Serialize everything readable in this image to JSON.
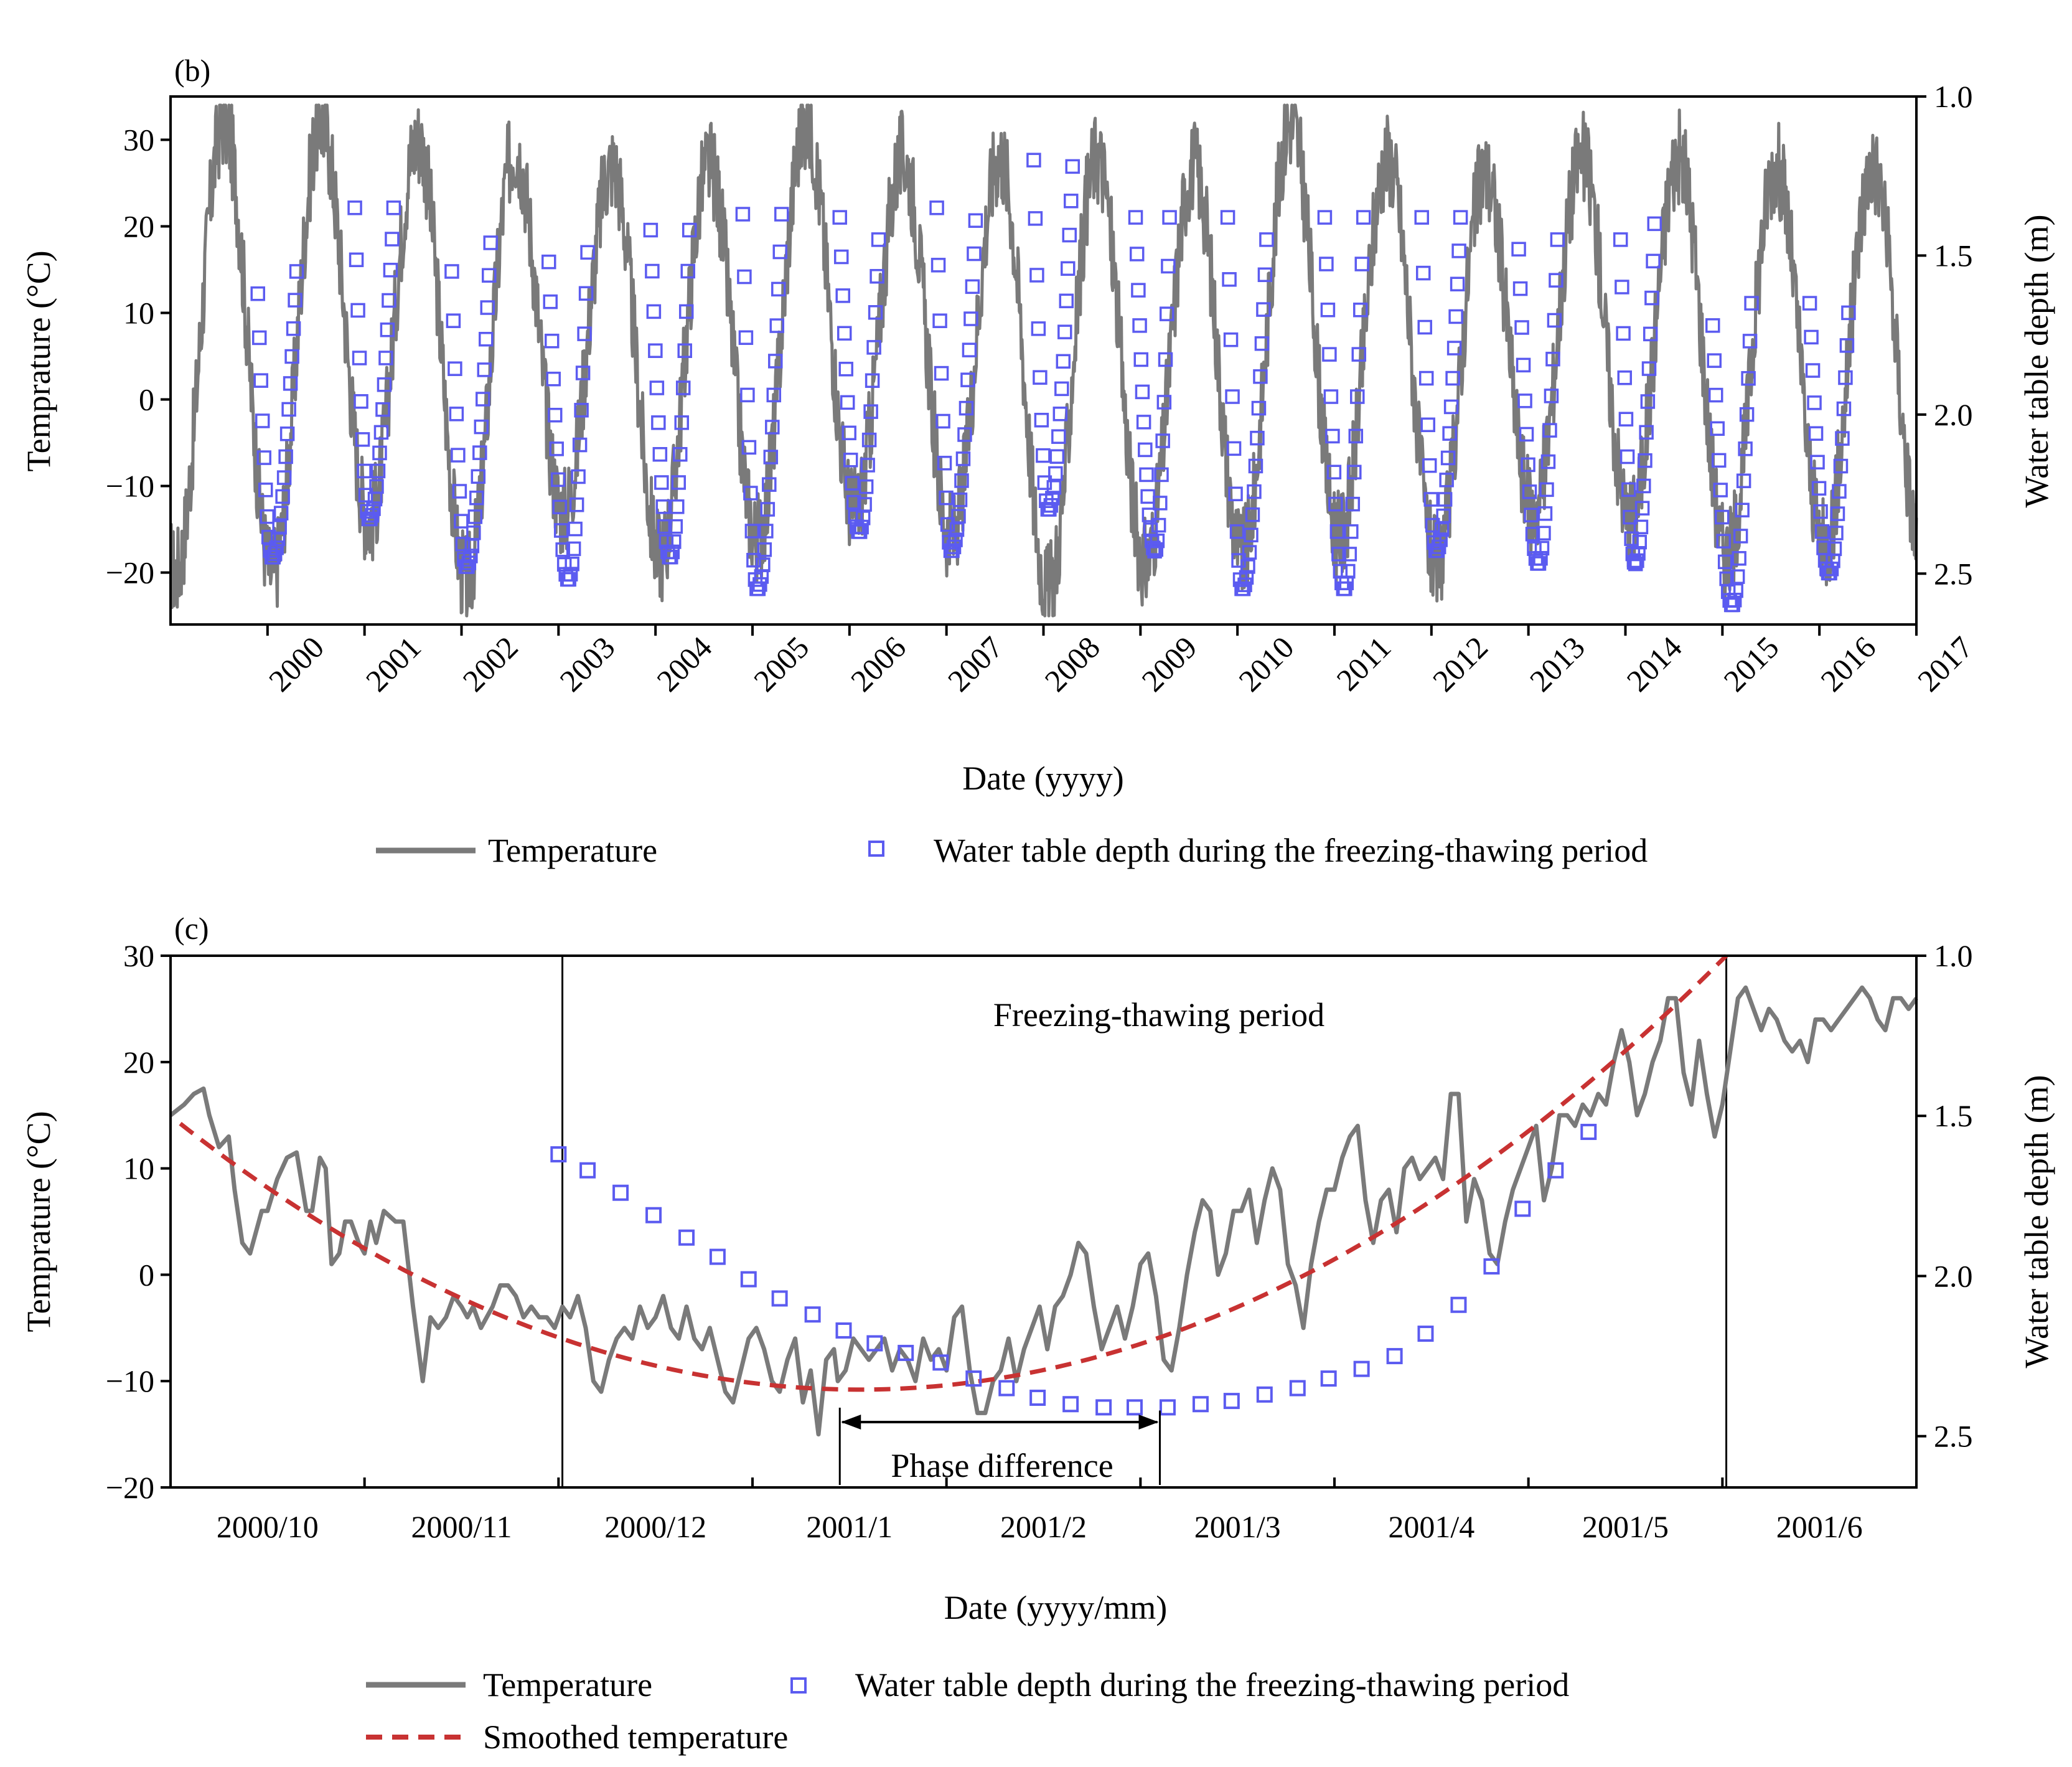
{
  "chart_data": [
    {
      "type": "line",
      "panel_label": "(b)",
      "xlabel": "Date (yyyy)",
      "ylabel_left": "Temprature (°C)",
      "ylabel_right": "Water table depth (m)",
      "x_tick_labels": [
        "2000",
        "2001",
        "2002",
        "2003",
        "2004",
        "2005",
        "2006",
        "2007",
        "2008",
        "2009",
        "2010",
        "2011",
        "2012",
        "2013",
        "2014",
        "2015",
        "2016",
        "2017"
      ],
      "xlim": [
        1999.0,
        2017.0
      ],
      "ylim_left": [
        -26,
        35
      ],
      "y_ticks_left": [
        30,
        20,
        10,
        0,
        -10,
        -20
      ],
      "y_tick_labels_left": [
        "30",
        "20",
        "10",
        "0",
        "−10",
        "−20"
      ],
      "ylim_right_reversed": [
        1.0,
        2.66
      ],
      "y_ticks_right": [
        1.0,
        1.5,
        2.0,
        2.5
      ],
      "y_tick_labels_right": [
        "1.0",
        "1.5",
        "2.0",
        "2.5"
      ],
      "grid": false,
      "legend": {
        "placement": "bottom",
        "entries": [
          "Temperature",
          "Water table depth during the freezing-thawing period"
        ]
      },
      "temperature_seasonal": {
        "description_units": "°C, annual cycle: year, approximate summer peak, approximate winter low",
        "years": [
          2000,
          2001,
          2002,
          2003,
          2004,
          2005,
          2006,
          2007,
          2008,
          2009,
          2010,
          2011,
          2012,
          2013,
          2014,
          2015,
          2016,
          2017
        ],
        "summer_peak": [
          32,
          30,
          29,
          27,
          27,
          32,
          28,
          28,
          28,
          27,
          32,
          28,
          26,
          28,
          28,
          27,
          27,
          30
        ],
        "winter_low": [
          -20,
          -14,
          -21,
          -13,
          -18,
          -16,
          -13,
          -16,
          -22,
          -19,
          -18,
          -16,
          -19,
          -13,
          -14,
          -18,
          -17,
          -17
        ]
      },
      "series": [
        {
          "name": "Water table depth during the freezing-thawing period",
          "units": "m",
          "periods": [
            {
              "start": 1999.9,
              "start_depth": 1.62,
              "min_date": 2000.05,
              "max_depth": 2.45,
              "end": 2000.3,
              "end_depth": 1.55
            },
            {
              "start": 2000.9,
              "start_depth": 1.35,
              "min_date": 2001.05,
              "max_depth": 2.33,
              "end": 2001.3,
              "end_depth": 1.35
            },
            {
              "start": 2001.9,
              "start_depth": 1.55,
              "min_date": 2002.05,
              "max_depth": 2.48,
              "end": 2002.3,
              "end_depth": 1.46
            },
            {
              "start": 2002.9,
              "start_depth": 1.52,
              "min_date": 2003.1,
              "max_depth": 2.52,
              "end": 2003.3,
              "end_depth": 1.49
            },
            {
              "start": 2003.95,
              "start_depth": 1.42,
              "min_date": 2004.15,
              "max_depth": 2.45,
              "end": 2004.35,
              "end_depth": 1.42
            },
            {
              "start": 2004.9,
              "start_depth": 1.37,
              "min_date": 2005.05,
              "max_depth": 2.55,
              "end": 2005.3,
              "end_depth": 1.37
            },
            {
              "start": 2005.9,
              "start_depth": 1.38,
              "min_date": 2006.1,
              "max_depth": 2.37,
              "end": 2006.3,
              "end_depth": 1.45
            },
            {
              "start": 2006.9,
              "start_depth": 1.35,
              "min_date": 2007.05,
              "max_depth": 2.43,
              "end": 2007.3,
              "end_depth": 1.39
            },
            {
              "start": 2007.9,
              "start_depth": 1.2,
              "min_date": 2008.05,
              "max_depth": 2.3,
              "end": 2008.3,
              "end_depth": 1.22
            },
            {
              "start": 2008.95,
              "start_depth": 1.38,
              "min_date": 2009.15,
              "max_depth": 2.43,
              "end": 2009.3,
              "end_depth": 1.38
            },
            {
              "start": 2009.9,
              "start_depth": 1.38,
              "min_date": 2010.05,
              "max_depth": 2.55,
              "end": 2010.3,
              "end_depth": 1.45
            },
            {
              "start": 2010.9,
              "start_depth": 1.38,
              "min_date": 2011.1,
              "max_depth": 2.55,
              "end": 2011.3,
              "end_depth": 1.38
            },
            {
              "start": 2011.9,
              "start_depth": 1.38,
              "min_date": 2012.05,
              "max_depth": 2.43,
              "end": 2012.3,
              "end_depth": 1.38
            },
            {
              "start": 2012.9,
              "start_depth": 1.48,
              "min_date": 2013.1,
              "max_depth": 2.47,
              "end": 2013.3,
              "end_depth": 1.45
            },
            {
              "start": 2013.95,
              "start_depth": 1.45,
              "min_date": 2014.1,
              "max_depth": 2.47,
              "end": 2014.3,
              "end_depth": 1.4
            },
            {
              "start": 2014.9,
              "start_depth": 1.72,
              "min_date": 2015.1,
              "max_depth": 2.6,
              "end": 2015.3,
              "end_depth": 1.65
            },
            {
              "start": 2015.9,
              "start_depth": 1.65,
              "min_date": 2016.1,
              "max_depth": 2.5,
              "end": 2016.3,
              "end_depth": 1.68
            }
          ]
        }
      ]
    },
    {
      "type": "line",
      "panel_label": "(c)",
      "xlabel": "Date (yyyy/mm)",
      "ylabel_left": "Temprature (°C)",
      "ylabel_right": "Water table depth (m)",
      "x_tick_labels": [
        "2000/10",
        "2000/11",
        "2000/12",
        "2001/1",
        "2001/2",
        "2001/3",
        "2001/4",
        "2001/5",
        "2001/6"
      ],
      "x_axis_note": "x values are months since 2000/09 (tick labels sit between tick marks, centred on each month)",
      "xlim": [
        0.0,
        9.0
      ],
      "ylim_left": [
        -20,
        30
      ],
      "y_ticks_left": [
        30,
        20,
        10,
        0,
        -10,
        -20
      ],
      "y_tick_labels_left": [
        "30",
        "20",
        "10",
        "0",
        "−10",
        "−20"
      ],
      "ylim_right_reversed": [
        1.0,
        2.66
      ],
      "y_ticks_right": [
        1.0,
        1.5,
        2.0,
        2.5
      ],
      "y_tick_labels_right": [
        "1.0",
        "1.5",
        "2.0",
        "2.5"
      ],
      "grid": false,
      "period_boundaries": [
        2.02,
        8.02
      ],
      "annotations": {
        "period_label": "Freezing-thawing period",
        "phase_label": "Phase difference",
        "phase_arrow": [
          3.45,
          5.1
        ]
      },
      "legend": {
        "placement": "bottom",
        "entries": [
          "Temperature",
          "Water table depth during the freezing-thawing period",
          "Smoothed temperature"
        ]
      },
      "series": [
        {
          "name": "Temperature",
          "units": "°C",
          "x": [
            0.0,
            0.07,
            0.12,
            0.17,
            0.2,
            0.25,
            0.3,
            0.33,
            0.37,
            0.41,
            0.47,
            0.5,
            0.55,
            0.6,
            0.65,
            0.7,
            0.73,
            0.77,
            0.8,
            0.83,
            0.87,
            0.9,
            0.93,
            0.97,
            1.0,
            1.03,
            1.06,
            1.1,
            1.13,
            1.16,
            1.2,
            1.25,
            1.3,
            1.34,
            1.38,
            1.42,
            1.46,
            1.5,
            1.53,
            1.56,
            1.6,
            1.63,
            1.66,
            1.7,
            1.74,
            1.78,
            1.82,
            1.86,
            1.9,
            1.94,
            1.98,
            2.02,
            2.06,
            2.1,
            2.14,
            2.18,
            2.22,
            2.26,
            2.3,
            2.34,
            2.38,
            2.42,
            2.46,
            2.5,
            2.54,
            2.58,
            2.62,
            2.66,
            2.7,
            2.74,
            2.78,
            2.82,
            2.86,
            2.9,
            2.94,
            2.98,
            3.02,
            3.06,
            3.1,
            3.14,
            3.18,
            3.22,
            3.26,
            3.3,
            3.34,
            3.38,
            3.42,
            3.44,
            3.48,
            3.52,
            3.56,
            3.6,
            3.64,
            3.68,
            3.72,
            3.76,
            3.8,
            3.84,
            3.88,
            3.92,
            3.96,
            4.0,
            4.04,
            4.08,
            4.12,
            4.16,
            4.2,
            4.24,
            4.28,
            4.32,
            4.36,
            4.4,
            4.44,
            4.48,
            4.52,
            4.56,
            4.6,
            4.64,
            4.68,
            4.72,
            4.76,
            4.8,
            4.84,
            4.88,
            4.92,
            4.96,
            5.0,
            5.04,
            5.08,
            5.12,
            5.16,
            5.2,
            5.24,
            5.28,
            5.32,
            5.36,
            5.4,
            5.44,
            5.48,
            5.52,
            5.56,
            5.6,
            5.64,
            5.68,
            5.72,
            5.76,
            5.8,
            5.84,
            5.88,
            5.92,
            5.96,
            6.0,
            6.04,
            6.08,
            6.12,
            6.16,
            6.2,
            6.24,
            6.28,
            6.32,
            6.36,
            6.4,
            6.44,
            6.48,
            6.52,
            6.56,
            6.6,
            6.64,
            6.68,
            6.72,
            6.76,
            6.8,
            6.84,
            6.88,
            6.92,
            6.96,
            7.0,
            7.04,
            7.08,
            7.12,
            7.16,
            7.2,
            7.24,
            7.28,
            7.32,
            7.36,
            7.4,
            7.44,
            7.48,
            7.52,
            7.56,
            7.6,
            7.64,
            7.68,
            7.72,
            7.76,
            7.8,
            7.84,
            7.88,
            7.92,
            7.96,
            8.0,
            8.04,
            8.08,
            8.12,
            8.16,
            8.2,
            8.24,
            8.28,
            8.32,
            8.36,
            8.4,
            8.44,
            8.48,
            8.52,
            8.56,
            8.6,
            8.64,
            8.68,
            8.72,
            8.76,
            8.8,
            8.84,
            8.88,
            8.92,
            8.96,
            9.0
          ],
          "y": [
            15,
            16,
            17,
            17.5,
            15,
            12,
            13,
            8,
            3,
            2,
            6,
            6,
            9,
            11,
            11.5,
            6,
            6,
            11,
            10,
            1,
            2,
            5,
            5,
            3,
            2,
            5,
            3,
            6,
            5.5,
            5,
            5,
            -3,
            -10,
            -4,
            -5,
            -4,
            -2,
            -3,
            -4,
            -3,
            -5,
            -4,
            -3,
            -1,
            -1,
            -2,
            -4,
            -3,
            -4,
            -4,
            -5,
            -3,
            -4,
            -2,
            -5,
            -10,
            -11,
            -8,
            -6,
            -5,
            -6,
            -3,
            -5,
            -4,
            -2,
            -5,
            -6,
            -3,
            -6,
            -7,
            -5,
            -8,
            -11,
            -12,
            -9,
            -6,
            -5,
            -7,
            -10,
            -11,
            -8,
            -6,
            -12,
            -9,
            -15,
            -8,
            -7,
            -10,
            -9,
            -6,
            -7,
            -8,
            -7,
            -6,
            -9,
            -7,
            -8,
            -10,
            -6,
            -8,
            -7,
            -9,
            -4,
            -3,
            -9,
            -13,
            -13,
            -10,
            -9,
            -6,
            -10,
            -7,
            -5,
            -3,
            -7,
            -3,
            -2,
            0,
            3,
            2,
            -3,
            -7,
            -5,
            -3,
            -6,
            -3,
            1,
            2,
            -2,
            -8,
            -9,
            -5,
            0,
            4,
            7,
            6,
            0,
            2,
            6,
            6,
            8,
            3,
            7,
            10,
            8,
            1,
            -1,
            -5,
            1,
            5,
            8,
            8,
            11,
            13,
            14,
            7,
            3,
            7,
            8,
            4,
            10,
            11,
            9,
            10,
            11,
            9,
            17,
            17,
            5,
            9,
            7,
            2,
            1,
            5,
            8,
            10,
            12,
            14,
            7,
            10,
            15,
            15,
            14,
            16,
            15,
            17,
            16,
            20,
            23,
            20,
            15,
            17,
            20,
            22,
            26,
            26,
            19,
            16,
            22,
            17,
            13,
            16,
            21,
            26,
            27,
            25,
            23,
            25,
            24,
            22,
            21,
            22,
            20,
            24,
            24,
            23,
            24,
            25,
            26,
            27,
            26,
            24,
            23,
            26,
            26,
            25,
            26
          ],
          "color": "#7a7a7a"
        },
        {
          "name": "Water table depth during the freezing-thawing period",
          "units": "m",
          "x": [
            2.0,
            2.15,
            2.32,
            2.49,
            2.66,
            2.82,
            2.98,
            3.14,
            3.31,
            3.47,
            3.63,
            3.79,
            3.97,
            4.14,
            4.31,
            4.47,
            4.64,
            4.81,
            4.97,
            5.14,
            5.31,
            5.47,
            5.64,
            5.81,
            5.97,
            6.14,
            6.31,
            6.47,
            6.64,
            6.81,
            6.97,
            7.14,
            7.31
          ],
          "y": [
            1.62,
            1.67,
            1.74,
            1.81,
            1.88,
            1.94,
            2.01,
            2.07,
            2.12,
            2.17,
            2.21,
            2.24,
            2.27,
            2.32,
            2.35,
            2.38,
            2.4,
            2.41,
            2.41,
            2.41,
            2.4,
            2.39,
            2.37,
            2.35,
            2.32,
            2.29,
            2.25,
            2.18,
            2.09,
            1.97,
            1.79,
            1.67,
            1.55
          ],
          "color": "#5b5bf0"
        },
        {
          "name": "Smoothed temperature",
          "units": "°C",
          "curve": "quadratic",
          "vertex_x": 3.55,
          "vertex_y": -10.8,
          "x_range": [
            0.05,
            8.02
          ],
          "end_y": 30,
          "color": "#c83232",
          "dash": true
        }
      ]
    }
  ]
}
